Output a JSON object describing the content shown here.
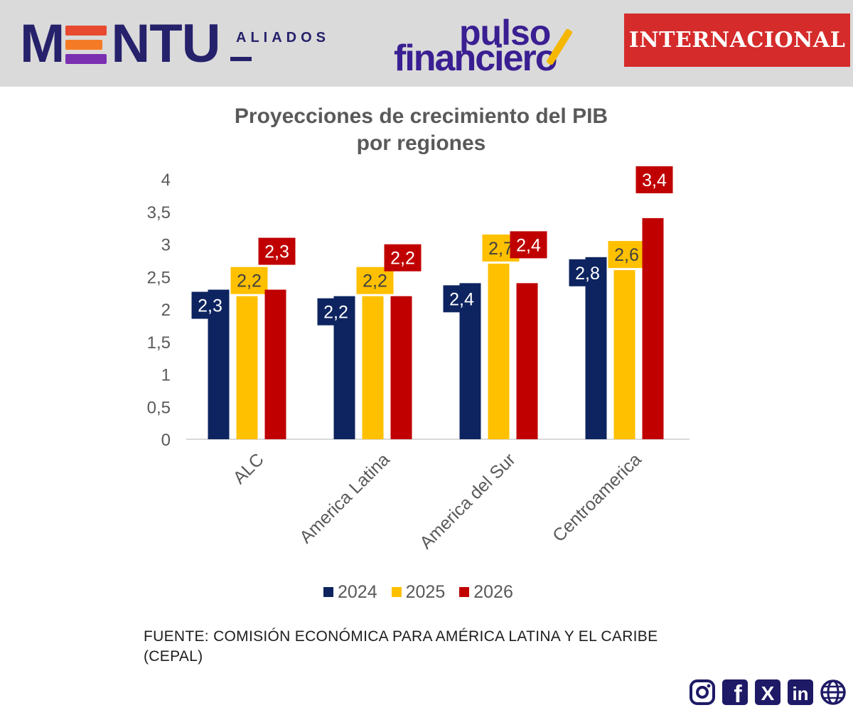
{
  "header": {
    "brand_left": "M",
    "brand_right": "NTU",
    "brand_sub": "ALIADOS",
    "pulso_line1": "pulso",
    "pulso_line2": "financiero",
    "badge": "INTERNACIONAL"
  },
  "colors": {
    "navy": "#0e2460",
    "yellow": "#ffc000",
    "red": "#c00000",
    "axis_text": "#595959",
    "badge_bg": "#d52b2b"
  },
  "chart_data": {
    "type": "bar",
    "title": "Proyecciones de crecimiento del PIB\npor regiones",
    "title_line1": "Proyecciones de crecimiento del PIB",
    "title_line2": "por regiones",
    "categories": [
      "ALC",
      "America Latina",
      "America del Sur",
      "Centroamerica"
    ],
    "series": [
      {
        "name": "2024",
        "values": [
          2.3,
          2.2,
          2.4,
          2.8
        ],
        "labels": [
          "2,3",
          "2,2",
          "2,4",
          "2,8"
        ]
      },
      {
        "name": "2025",
        "values": [
          2.2,
          2.2,
          2.7,
          2.6
        ],
        "labels": [
          "2,2",
          "2,2",
          "2,7",
          "2,6"
        ]
      },
      {
        "name": "2026",
        "values": [
          2.3,
          2.2,
          2.4,
          3.4
        ],
        "labels": [
          "2,3",
          "2,2",
          "2,4",
          "3,4"
        ]
      }
    ],
    "ylim": [
      0,
      4
    ],
    "yticks": [
      0,
      0.5,
      1,
      1.5,
      2,
      2.5,
      3,
      3.5,
      4
    ],
    "ytick_labels": [
      "0",
      "0,5",
      "1",
      "1,5",
      "2",
      "2,5",
      "3",
      "3,5",
      "4"
    ],
    "xlabel": "",
    "ylabel": "",
    "grid": false,
    "legend": "bottom"
  },
  "source": {
    "line1": "FUENTE: COMISIÓN ECONÓMICA PARA AMÉRICA LATINA Y EL CARIBE",
    "line2": "(CEPAL)"
  },
  "socials": {
    "instagram": "instagram-icon",
    "facebook": "facebook-icon",
    "x": "x-icon",
    "linkedin": "linkedin-icon",
    "web": "globe-icon",
    "facebook_glyph": "f",
    "x_glyph": "X",
    "linkedin_glyph": "in"
  }
}
